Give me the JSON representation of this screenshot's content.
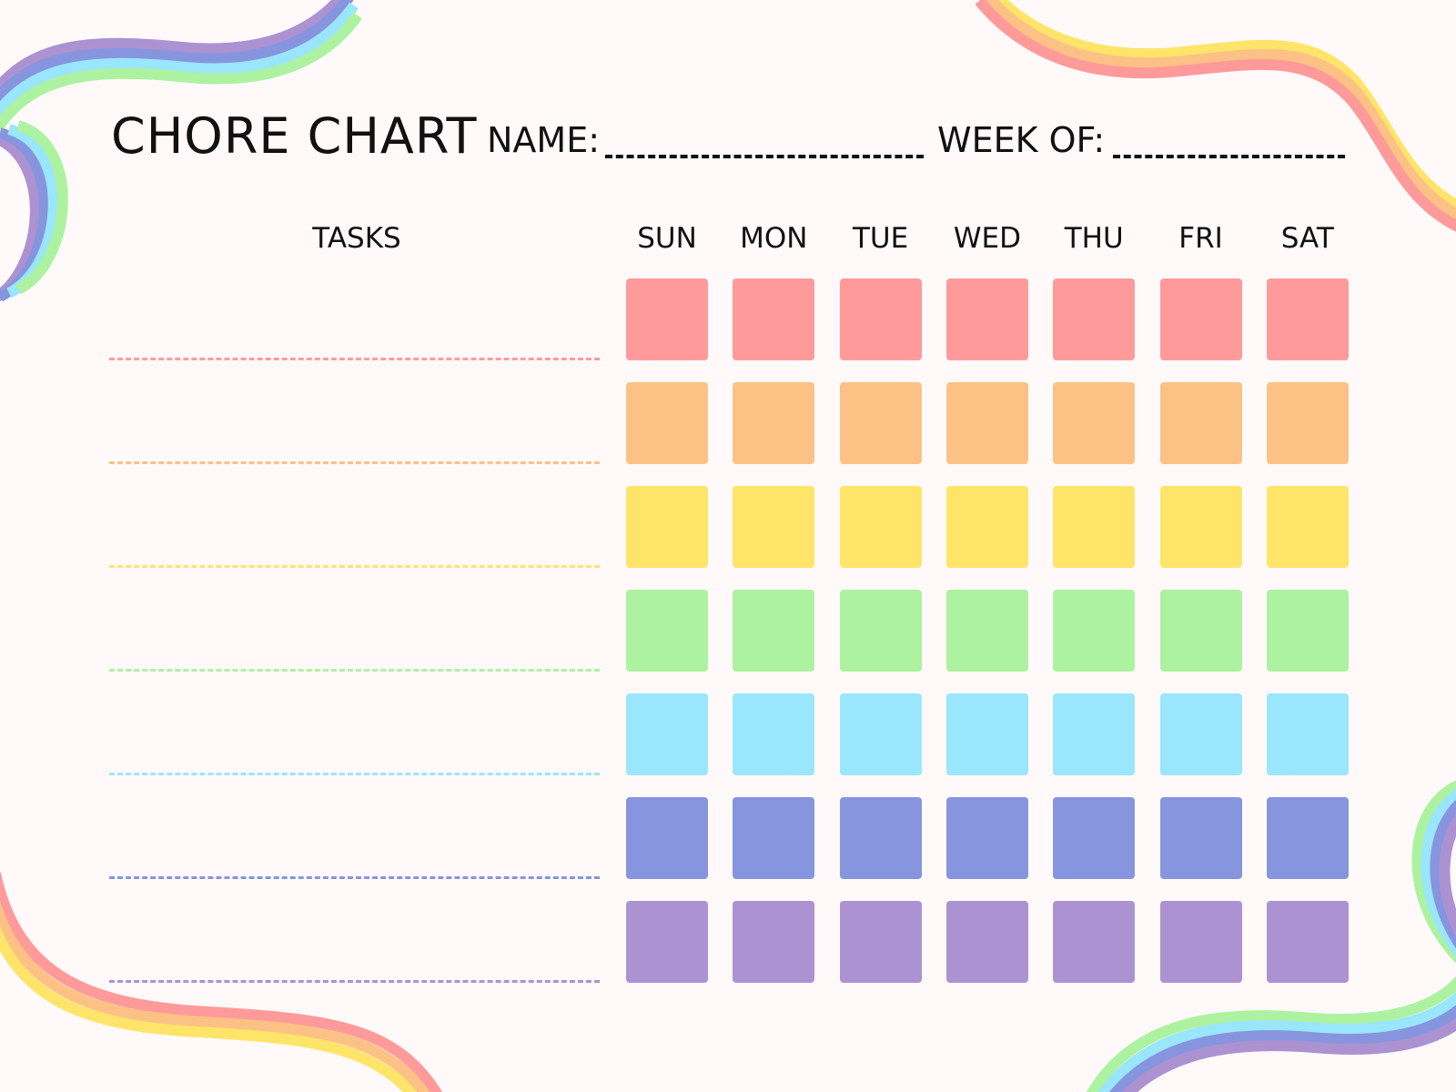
{
  "header": {
    "title": "CHORE CHART",
    "name_label": "NAME:",
    "week_label": "WEEK OF:"
  },
  "columns": {
    "tasks_label": "TASKS",
    "days": [
      "SUN",
      "MON",
      "TUE",
      "WED",
      "THU",
      "FRI",
      "SAT"
    ]
  },
  "rows": [
    {
      "color": "#FF9A9A"
    },
    {
      "color": "#FCC285"
    },
    {
      "color": "#FFE46A"
    },
    {
      "color": "#ADF2A0"
    },
    {
      "color": "#9AE6FC"
    },
    {
      "color": "#8795DE"
    },
    {
      "color": "#AD92D2"
    }
  ],
  "colors": {
    "background": "#FFFAF9",
    "text": "#111111"
  }
}
